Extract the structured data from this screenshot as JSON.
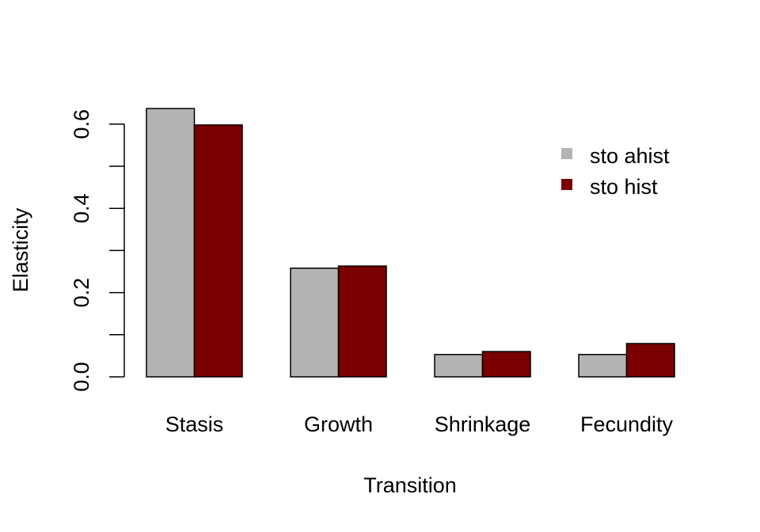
{
  "chart_data": {
    "type": "bar",
    "title": "",
    "xlabel": "Transition",
    "ylabel": "Elasticity",
    "categories": [
      "Stasis",
      "Growth",
      "Shrinkage",
      "Fecundity"
    ],
    "series": [
      {
        "name": "sto ahist",
        "color": "#B3B3B3",
        "values": [
          0.637,
          0.258,
          0.053,
          0.053
        ]
      },
      {
        "name": "sto hist",
        "color": "#7A0000",
        "values": [
          0.598,
          0.263,
          0.06,
          0.079
        ]
      }
    ],
    "ylim": [
      0,
      0.6
    ],
    "yticks": [
      0.0,
      0.1,
      0.2,
      0.3,
      0.4,
      0.5,
      0.6
    ],
    "ytick_labels": [
      "0.0",
      "0.2",
      "0.4",
      "0.6"
    ],
    "grid": false,
    "legend_position": "top-right"
  }
}
